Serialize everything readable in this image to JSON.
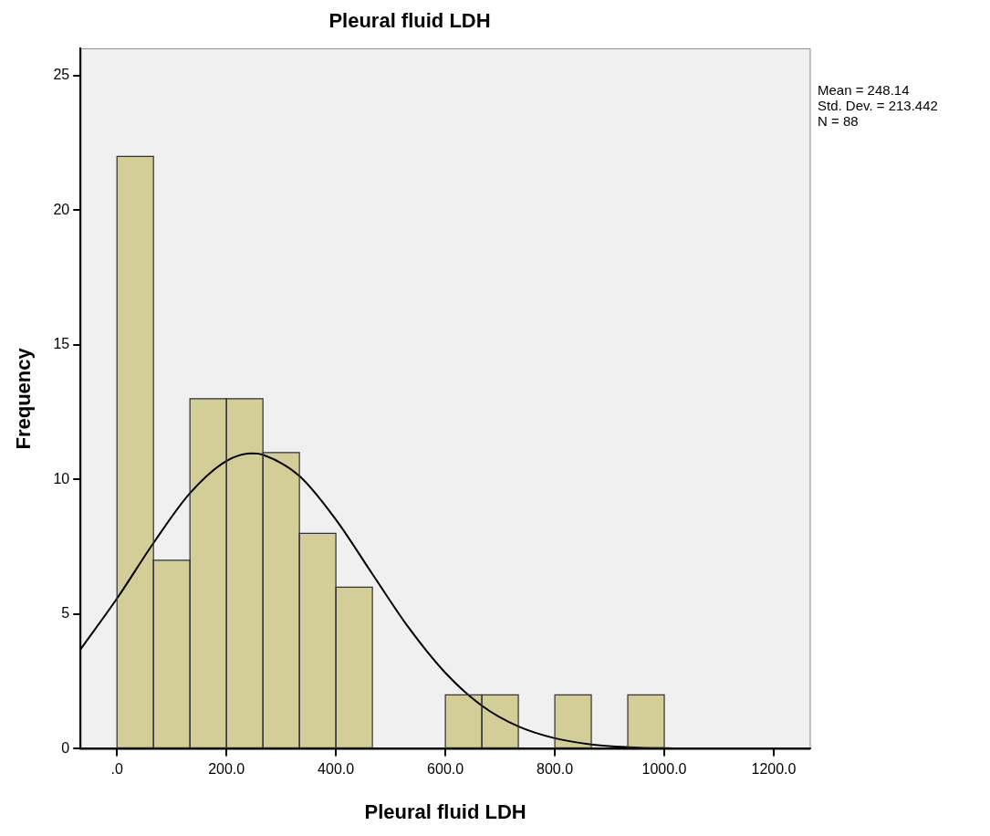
{
  "chart_data": {
    "type": "histogram",
    "title": "Pleural fluid LDH",
    "xlabel": "Pleural fluid LDH",
    "ylabel": "Frequency",
    "bins": [
      0,
      66.7,
      133.3,
      200,
      266.7,
      333.3,
      400,
      466.7,
      533.3,
      600,
      666.7,
      733.3,
      800,
      866.7,
      933.3,
      1000
    ],
    "values": [
      22,
      7,
      13,
      13,
      11,
      8,
      6,
      0,
      0,
      2,
      2,
      0,
      2,
      0,
      2
    ],
    "color": "#d3ce97",
    "series": [
      {
        "type": "line",
        "color": "#000000",
        "marker": "none",
        "x": [
          -66.7,
          0,
          66.7,
          133.3,
          200,
          248.1,
          266.7,
          333.3,
          400,
          466.7,
          533.3,
          600,
          666.7,
          733.3,
          800,
          866.7,
          933.3,
          1000,
          1066.7,
          1133.3,
          1266.7
        ],
        "values": [
          3.69,
          5.58,
          7.64,
          9.49,
          10.69,
          10.97,
          10.92,
          10.13,
          8.51,
          6.49,
          4.49,
          2.82,
          1.6,
          0.83,
          0.39,
          0.16,
          0.06,
          0.02,
          0.01,
          0,
          0
        ]
      }
    ],
    "xlim": [
      -66.7,
      1266.7
    ],
    "xticks": [
      {
        "value": 0,
        "label": ".0"
      },
      {
        "value": 200,
        "label": "200.0"
      },
      {
        "value": 400,
        "label": "400.0"
      },
      {
        "value": 600,
        "label": "600.0"
      },
      {
        "value": 800,
        "label": "800.0"
      },
      {
        "value": 1000,
        "label": "1000.0"
      },
      {
        "value": 1200,
        "label": "1200.0"
      }
    ],
    "ylim": [
      0,
      26
    ],
    "yticks": [
      0,
      5,
      10,
      15,
      20,
      25
    ],
    "annotations": [
      "Mean = 248.14\nStd. Dev. = 213.442\nN = 88"
    ]
  }
}
